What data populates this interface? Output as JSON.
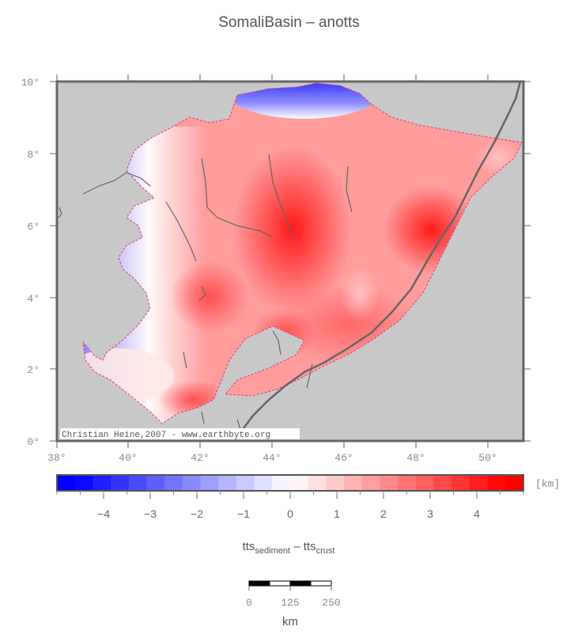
{
  "title": "SomaliBasin – anotts",
  "map": {
    "lon_ticks": [
      "38°",
      "40°",
      "42°",
      "44°",
      "46°",
      "48°",
      "50°"
    ],
    "lat_ticks": [
      "0°",
      "2°",
      "4°",
      "6°",
      "8°",
      "10°"
    ],
    "credit": "Christian Heine,2007 - www.earthbyte.org",
    "colors": {
      "land": "#c8c8c8",
      "negative": "#0000ff",
      "zero": "#ffffff",
      "positive": "#ff0000",
      "coast": "#666666"
    }
  },
  "colorbar": {
    "unit": "[km]",
    "range": [
      -5,
      5
    ],
    "ticks": [
      "−4",
      "−3",
      "−2",
      "−1",
      "0",
      "1",
      "2",
      "3",
      "4"
    ],
    "tick_values": [
      -4,
      -3,
      -2,
      -1,
      0,
      1,
      2,
      3,
      4
    ]
  },
  "xlabel": {
    "main1": "tts",
    "sub1": "sediment",
    "dash": " – ",
    "main2": "tts",
    "sub2": "crust"
  },
  "scalebar": {
    "labels": [
      "0",
      "125",
      "250"
    ],
    "unit": "km"
  }
}
